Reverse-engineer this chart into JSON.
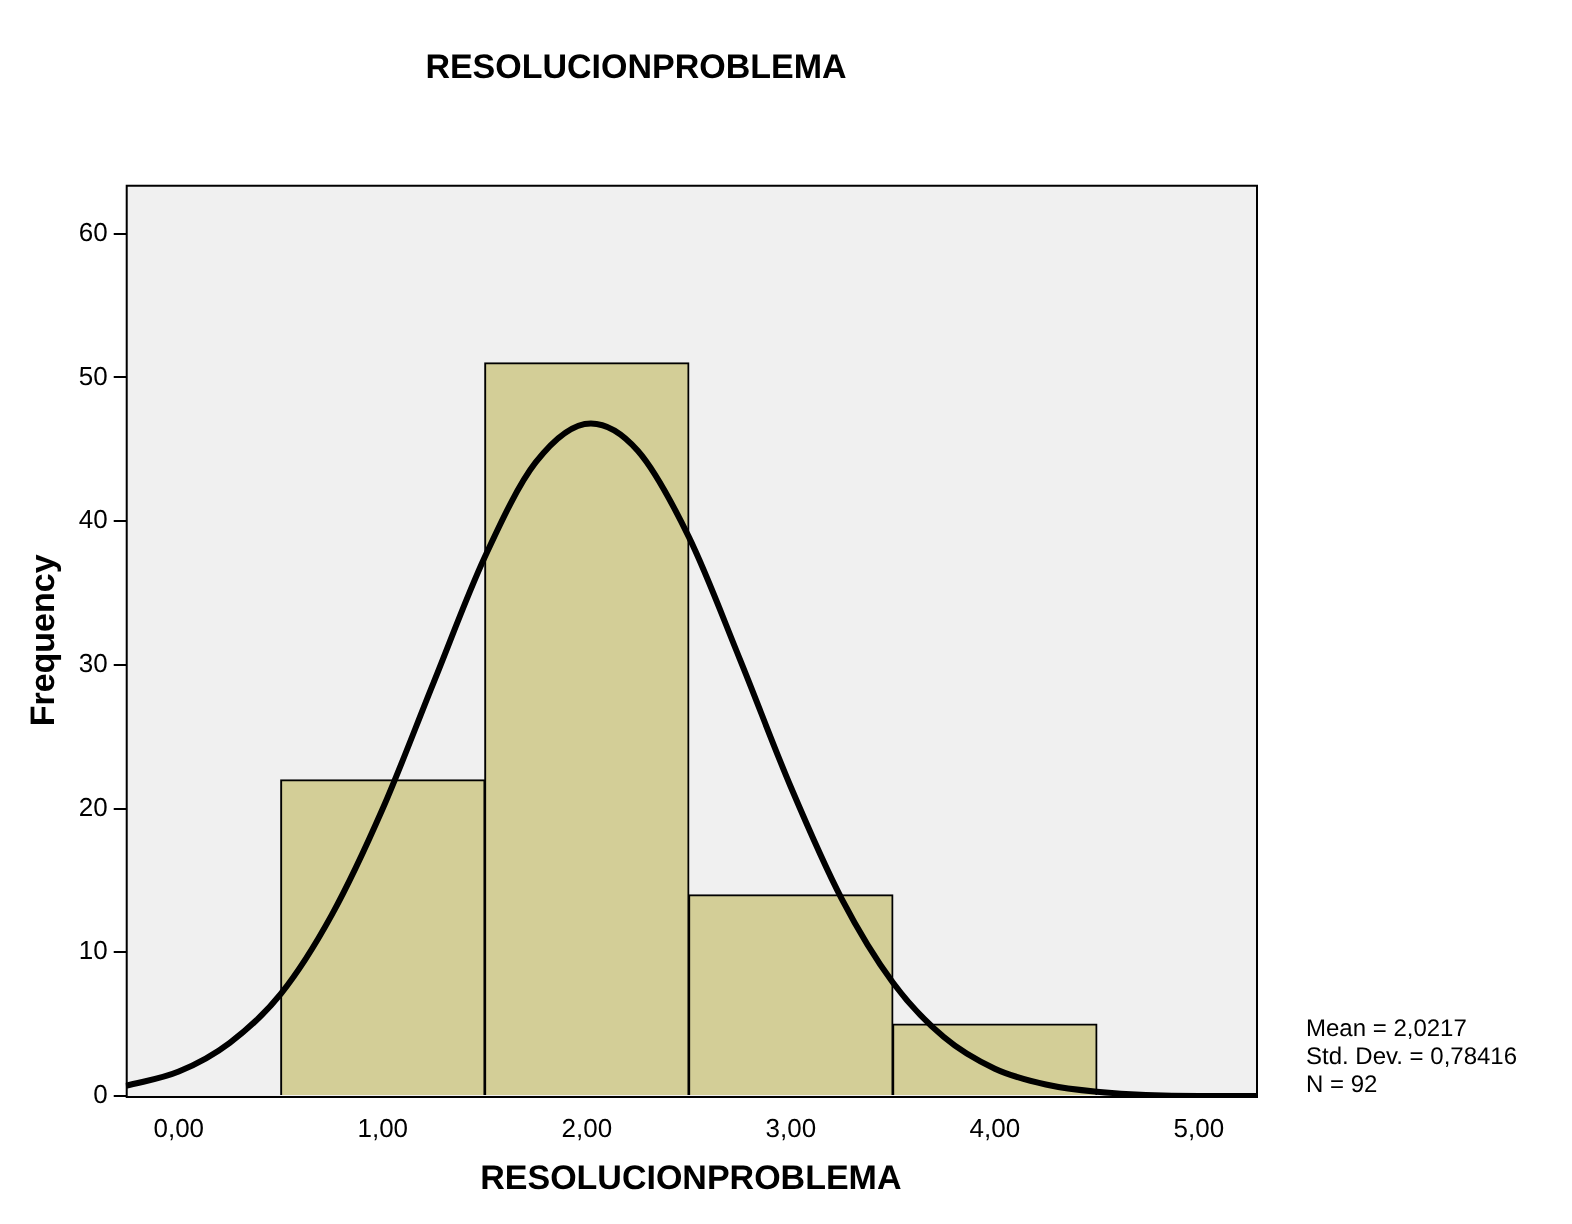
{
  "chart_data": {
    "type": "histogram",
    "title": "RESOLUCIONPROBLEMA",
    "xlabel": "RESOLUCIONPROBLEMA",
    "ylabel": "Frequency",
    "bins": [
      0.5,
      1.5,
      2.5,
      3.5,
      4.5
    ],
    "values": [
      22,
      51,
      14,
      5
    ],
    "color": "#d3ce97",
    "series": [
      {
        "type": "line",
        "color": "#000000",
        "x": [
          -0.26,
          0,
          0.25,
          0.5,
          0.75,
          1,
          1.25,
          1.5,
          1.75,
          2.02,
          2.25,
          2.5,
          2.75,
          3,
          3.25,
          3.5,
          3.75,
          4,
          4.25,
          4.5,
          5,
          5.28
        ],
        "values": [
          0.7,
          1.7,
          3.7,
          7.1,
          12.6,
          20,
          28.8,
          37.5,
          44.1,
          46.8,
          44.9,
          38.9,
          30.4,
          21.5,
          13.7,
          7.9,
          4.1,
          1.9,
          0.8,
          0.3,
          0,
          0
        ]
      }
    ],
    "xlim": [
      -0.26,
      5.28
    ],
    "xticks": [
      {
        "value": 0,
        "label": "0,00"
      },
      {
        "value": 1,
        "label": "1,00"
      },
      {
        "value": 2,
        "label": "2,00"
      },
      {
        "value": 3,
        "label": "3,00"
      },
      {
        "value": 4,
        "label": "4,00"
      },
      {
        "value": 5,
        "label": "5,00"
      }
    ],
    "ylim": [
      0,
      63.4
    ],
    "yticks": [
      0,
      10,
      20,
      30,
      40,
      50,
      60
    ],
    "annotations": [
      "Mean = 2,0217",
      "Std. Dev. = 0,78416",
      "N = 92"
    ],
    "grid": false,
    "legend": false,
    "marker": "none",
    "line_style": "solid"
  }
}
